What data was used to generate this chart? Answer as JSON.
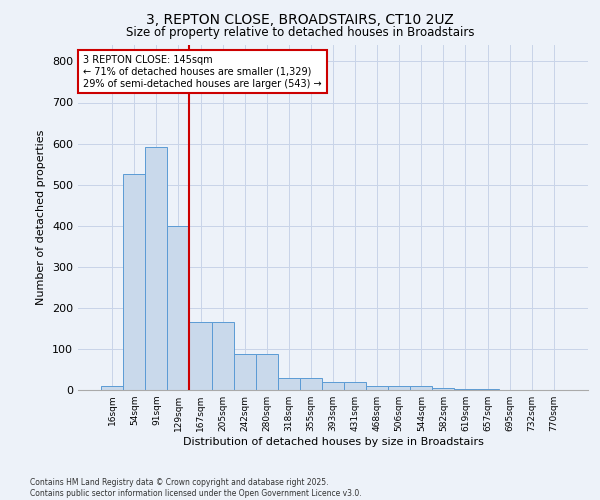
{
  "title_line1": "3, REPTON CLOSE, BROADSTAIRS, CT10 2UZ",
  "title_line2": "Size of property relative to detached houses in Broadstairs",
  "xlabel": "Distribution of detached houses by size in Broadstairs",
  "ylabel": "Number of detached properties",
  "categories": [
    "16sqm",
    "54sqm",
    "91sqm",
    "129sqm",
    "167sqm",
    "205sqm",
    "242sqm",
    "280sqm",
    "318sqm",
    "355sqm",
    "393sqm",
    "431sqm",
    "468sqm",
    "506sqm",
    "544sqm",
    "582sqm",
    "619sqm",
    "657sqm",
    "695sqm",
    "732sqm",
    "770sqm"
  ],
  "values": [
    10,
    527,
    592,
    400,
    165,
    165,
    88,
    88,
    30,
    30,
    20,
    20,
    10,
    10,
    10,
    5,
    3,
    2,
    1,
    1,
    0
  ],
  "bar_color": "#c9d9eb",
  "bar_edge_color": "#5b9bd5",
  "grid_color": "#c8d4e8",
  "background_color": "#edf2f9",
  "red_line_index": 3,
  "annotation_text": "3 REPTON CLOSE: 145sqm\n← 71% of detached houses are smaller (1,329)\n29% of semi-detached houses are larger (543) →",
  "annotation_box_color": "#ffffff",
  "annotation_border_color": "#cc0000",
  "footer_line1": "Contains HM Land Registry data © Crown copyright and database right 2025.",
  "footer_line2": "Contains public sector information licensed under the Open Government Licence v3.0.",
  "ylim": [
    0,
    840
  ],
  "yticks": [
    0,
    100,
    200,
    300,
    400,
    500,
    600,
    700,
    800
  ]
}
